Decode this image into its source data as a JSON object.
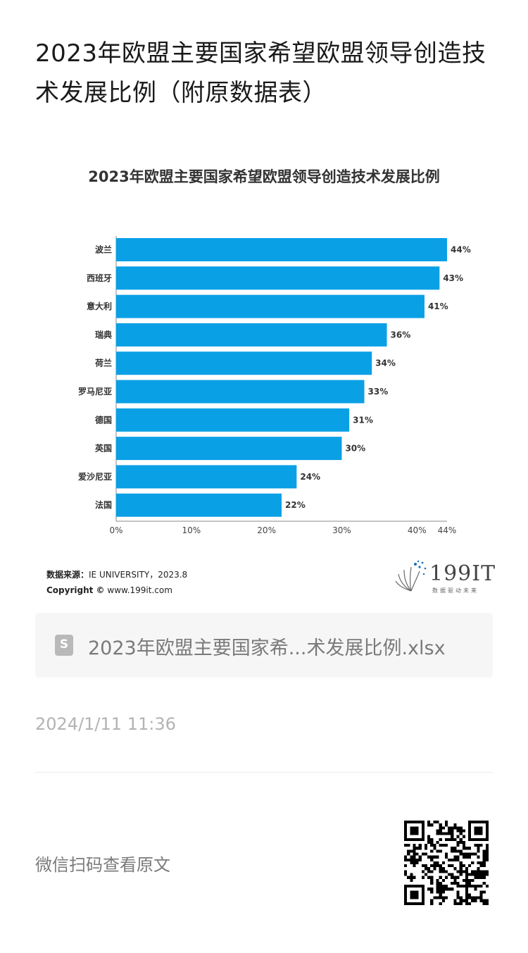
{
  "page": {
    "title": "2023年欧盟主要国家希望欧盟领导创造技术发展比例（附原数据表）"
  },
  "chart_data": {
    "type": "bar",
    "orientation": "horizontal",
    "title": "2023年欧盟主要国家希望欧盟领导创造技术发展比例",
    "categories": [
      "波兰",
      "西班牙",
      "意大利",
      "瑞典",
      "荷兰",
      "罗马尼亚",
      "德国",
      "英国",
      "爱沙尼亚",
      "法国"
    ],
    "values": [
      44,
      43,
      41,
      36,
      34,
      33,
      31,
      30,
      24,
      22
    ],
    "value_labels": [
      "44%",
      "43%",
      "41%",
      "36%",
      "34%",
      "33%",
      "31%",
      "30%",
      "24%",
      "22%"
    ],
    "x_ticks": [
      "0%",
      "10%",
      "20%",
      "30%",
      "40%",
      "44%"
    ],
    "x_tick_values": [
      0,
      10,
      20,
      30,
      40,
      44
    ],
    "xlim": [
      0,
      44
    ],
    "bar_color": "#0aa0e6",
    "grid": false
  },
  "source": {
    "label": "数据来源：",
    "value": "IE UNIVERSITY，2023.8",
    "copyright_label": "Copyright ©",
    "copyright_value": "www.199it.com"
  },
  "brand": {
    "name": "199IT",
    "tagline": "数据驱动未来",
    "color": "#1b6fb5"
  },
  "attachment": {
    "icon": "spreadsheet-file-icon",
    "icon_glyph": "S",
    "filename": "2023年欧盟主要国家希...术发展比例.xlsx"
  },
  "timestamp": "2024/1/11 11:36",
  "footer": {
    "scan_text": "微信扫码查看原文",
    "qr_icon": "qr-code-icon"
  }
}
